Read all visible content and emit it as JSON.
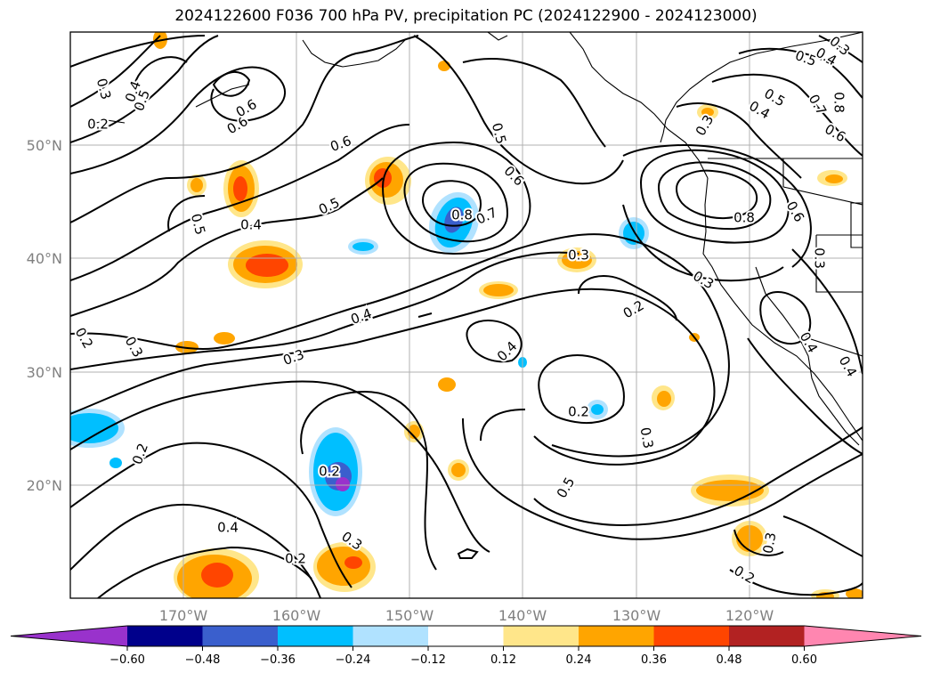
{
  "title": "2024122600 F036 700 hPa PV, precipitation PC (2024122900 - 2024123000)",
  "lat_ticks": [
    "50°N",
    "40°N",
    "30°N",
    "20°N"
  ],
  "lon_ticks": [
    "170°W",
    "160°W",
    "150°W",
    "140°W",
    "130°W",
    "120°W"
  ],
  "colorbar": {
    "ticks": [
      "−0.60",
      "−0.48",
      "−0.36",
      "−0.24",
      "−0.12",
      "0.12",
      "0.24",
      "0.36",
      "0.48",
      "0.60"
    ],
    "colors": [
      "#9932cc",
      "#00008b",
      "#3a5fcd",
      "#00bfff",
      "#b0e2ff",
      "#ffffff",
      "#ffe68a",
      "#ffa500",
      "#ff4500",
      "#b22222",
      "#ff86b0"
    ]
  },
  "contour_labels": [
    "0.3",
    "0.4",
    "0.5",
    "0.6",
    "0.6",
    "0.6",
    "0.5",
    "0.6",
    "0.7",
    "0.8",
    "0.5",
    "0.4",
    "0.5",
    "0.4",
    "0.3",
    "0.2",
    "0.3",
    "0.4",
    "0.3",
    "0.2",
    "0.4",
    "0.2",
    "0.2",
    "0.2",
    "0.5",
    "0.3",
    "0.3",
    "0.8",
    "0.6",
    "0.3",
    "0.4",
    "0.5",
    "0.7",
    "0.8",
    "0.6",
    "0.5",
    "0.4",
    "0.3",
    "0.3",
    "0.4",
    "0.4",
    "0.3",
    "0.2",
    "0.3",
    "0.2",
    "0.2"
  ]
}
